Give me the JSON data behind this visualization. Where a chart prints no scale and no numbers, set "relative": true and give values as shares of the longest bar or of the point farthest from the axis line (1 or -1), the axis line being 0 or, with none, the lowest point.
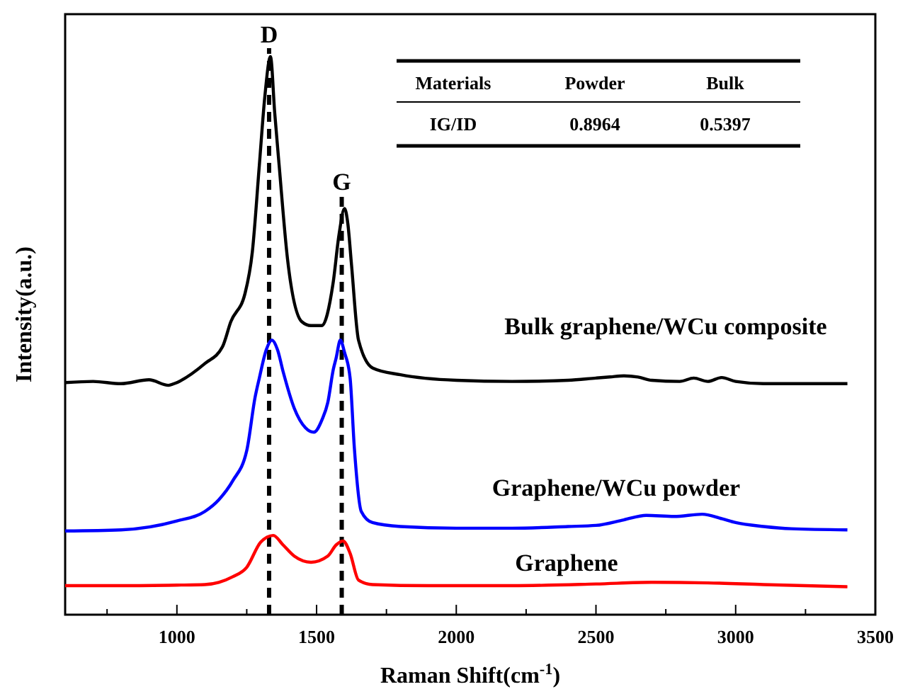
{
  "chart_data": {
    "type": "line",
    "relative": true,
    "xlabel": "Raman Shift(cm$^{-1}$)",
    "ylabel": "Intensity(a.u.)",
    "xlim": [
      600,
      3500
    ],
    "xticks": [
      {
        "value": 750,
        "label": null
      },
      1000,
      {
        "value": 1250,
        "label": null
      },
      1500,
      {
        "value": 1750,
        "label": null
      },
      2000,
      {
        "value": 2250,
        "label": null
      },
      2500,
      {
        "value": 2750,
        "label": null
      },
      3000,
      {
        "value": 3250,
        "label": null
      },
      3500
    ],
    "line_style": "solid",
    "series": [
      {
        "name": "Bulk graphene/WCu composite",
        "color": "#000000",
        "x": [
          600,
          700,
          800,
          900,
          970,
          990,
          1100,
          1163,
          1193,
          1244,
          1270,
          1295,
          1315,
          1335,
          1350,
          1366,
          1396,
          1447,
          1480,
          1518,
          1559,
          1580,
          1600,
          1612,
          1625,
          1650,
          1701,
          1800,
          2000,
          2200,
          2400,
          2500,
          2550,
          2600,
          2650,
          2700,
          2800,
          2850,
          2900,
          2950,
          3000,
          3100,
          3200,
          3400
        ],
        "values": [
          0.416,
          0.418,
          0.414,
          0.421,
          0.411,
          0.414,
          0.45,
          0.48,
          0.525,
          0.576,
          0.65,
          0.805,
          0.93,
          1.0,
          0.9,
          0.805,
          0.637,
          0.525,
          0.518,
          0.518,
          0.594,
          0.68,
          0.728,
          0.7,
          0.627,
          0.492,
          0.442,
          0.43,
          0.42,
          0.418,
          0.42,
          0.424,
          0.426,
          0.428,
          0.426,
          0.42,
          0.418,
          0.424,
          0.418,
          0.425,
          0.418,
          0.414,
          0.414,
          0.414
        ]
      },
      {
        "name": "Graphene/WCu powder",
        "color": "#0000ff",
        "x": [
          600,
          800,
          1000,
          1100,
          1150,
          1200,
          1250,
          1280,
          1295,
          1320,
          1340,
          1360,
          1381,
          1420,
          1460,
          1490,
          1520,
          1540,
          1560,
          1570,
          1585,
          1600,
          1620,
          1635,
          1660,
          1700,
          1800,
          2000,
          2200,
          2400,
          2500,
          2600,
          2680,
          2780,
          2880,
          2950,
          3000,
          3100,
          3200,
          3400
        ],
        "values": [
          0.15,
          0.152,
          0.168,
          0.185,
          0.206,
          0.24,
          0.294,
          0.39,
          0.424,
          0.475,
          0.492,
          0.475,
          0.434,
          0.37,
          0.335,
          0.327,
          0.35,
          0.38,
          0.44,
          0.46,
          0.492,
          0.47,
          0.424,
          0.3,
          0.185,
          0.165,
          0.158,
          0.155,
          0.155,
          0.158,
          0.16,
          0.17,
          0.178,
          0.176,
          0.18,
          0.172,
          0.165,
          0.158,
          0.154,
          0.152
        ]
      },
      {
        "name": "Graphene",
        "color": "#ff0000",
        "x": [
          600,
          800,
          1000,
          1100,
          1150,
          1200,
          1250,
          1300,
          1345,
          1380,
          1420,
          1480,
          1540,
          1570,
          1595,
          1620,
          1650,
          1700,
          1900,
          2200,
          2500,
          2700,
          2900,
          3100,
          3400
        ],
        "values": [
          0.052,
          0.052,
          0.053,
          0.054,
          0.058,
          0.068,
          0.085,
          0.13,
          0.142,
          0.125,
          0.105,
          0.094,
          0.105,
          0.125,
          0.132,
          0.11,
          0.062,
          0.054,
          0.052,
          0.052,
          0.055,
          0.058,
          0.057,
          0.054,
          0.05
        ]
      }
    ],
    "ref_lines": [
      {
        "axis": "x",
        "value": 1330,
        "label": "D",
        "color": "#000000",
        "line_style": "dashed"
      },
      {
        "axis": "x",
        "value": 1590,
        "label": "G",
        "color": "#000000",
        "line_style": "dashed"
      }
    ],
    "annotations": [
      "Materials",
      "Powder",
      "Bulk",
      "IG/ID",
      "0.8964",
      "0.5397"
    ]
  }
}
